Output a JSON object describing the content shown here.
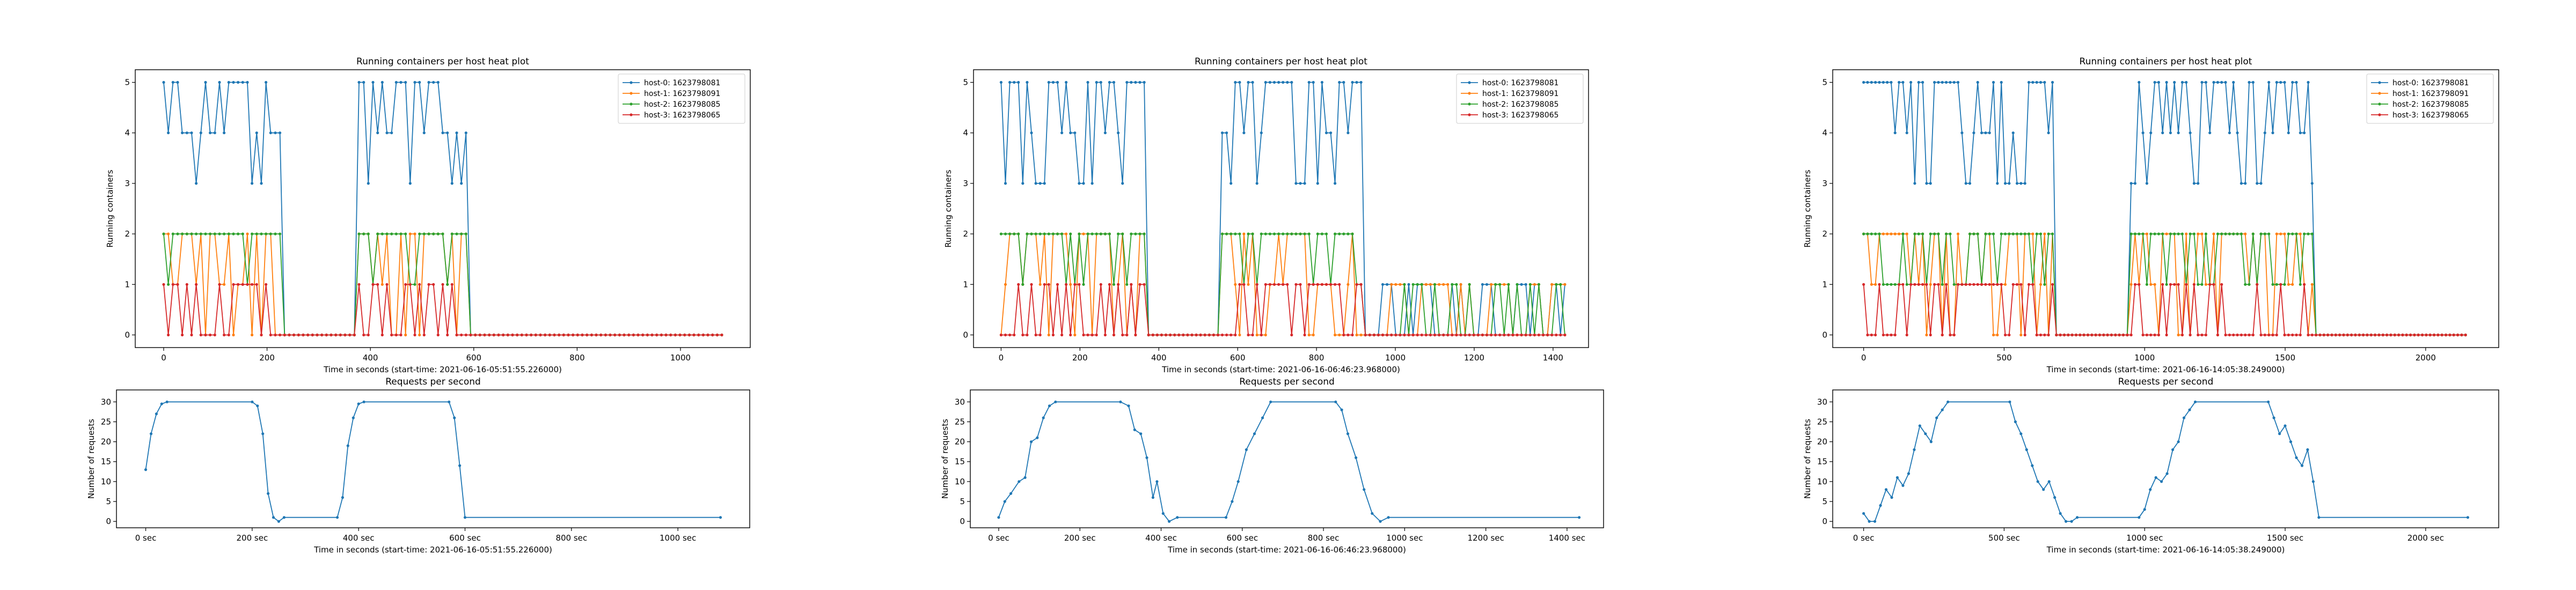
{
  "figure": {
    "colors": {
      "host-0": "#1f77b4",
      "host-1": "#ff7f0e",
      "host-2": "#2ca02c",
      "host-3": "#d62728",
      "requests": "#1f77b4"
    }
  },
  "chart_data": [
    {
      "id": "c1-hosts",
      "type": "line",
      "title": "Running containers per host heat plot",
      "xlabel": "Time in seconds (start-time: 2021-06-16-05:51:55.226000)",
      "ylabel": "Running containers",
      "xlim": [
        -55,
        1135
      ],
      "ylim": [
        -0.25,
        5.25
      ],
      "xticks": [
        0,
        200,
        400,
        600,
        800,
        1000
      ],
      "xtick_labels": [
        "0",
        "200",
        "400",
        "600",
        "800",
        "1000"
      ],
      "yticks": [
        0,
        1,
        2,
        3,
        4,
        5
      ],
      "ytick_labels": [
        "0",
        "1",
        "2",
        "3",
        "4",
        "5"
      ],
      "legend": "top-right",
      "gen": {
        "dt": 9,
        "tmax": 1080,
        "phases": [
          [
            0,
            230
          ],
          [
            370,
            585
          ]
        ],
        "seed": 11
      },
      "series": [
        {
          "name": "host-0: 1623798081",
          "key": "host-0"
        },
        {
          "name": "host-1: 1623798091",
          "key": "host-1"
        },
        {
          "name": "host-2: 1623798085",
          "key": "host-2"
        },
        {
          "name": "host-3: 1623798065",
          "key": "host-3"
        }
      ]
    },
    {
      "id": "c2-hosts",
      "type": "line",
      "title": "Running containers per host heat plot",
      "xlabel": "Time in seconds (start-time: 2021-06-16-06:46:23.968000)",
      "ylabel": "Running containers",
      "xlim": [
        -70,
        1490
      ],
      "ylim": [
        -0.25,
        5.25
      ],
      "xticks": [
        0,
        200,
        400,
        600,
        800,
        1000,
        1200,
        1400
      ],
      "xtick_labels": [
        "0",
        "200",
        "400",
        "600",
        "800",
        "1000",
        "1200",
        "1400"
      ],
      "yticks": [
        0,
        1,
        2,
        3,
        4,
        5
      ],
      "ytick_labels": [
        "0",
        "1",
        "2",
        "3",
        "4",
        "5"
      ],
      "legend": "top-right",
      "gen": {
        "dt": 11,
        "tmax": 1430,
        "phases": [
          [
            0,
            365
          ],
          [
            560,
            920
          ]
        ],
        "tail": [
          960,
          1430
        ],
        "seed": 23
      },
      "series": [
        {
          "name": "host-0: 1623798081",
          "key": "host-0"
        },
        {
          "name": "host-1: 1623798091",
          "key": "host-1"
        },
        {
          "name": "host-2: 1623798085",
          "key": "host-2"
        },
        {
          "name": "host-3: 1623798065",
          "key": "host-3"
        }
      ]
    },
    {
      "id": "c3-hosts",
      "type": "line",
      "title": "Running containers per host heat plot",
      "xlabel": "Time in seconds (start-time: 2021-06-16-14:05:38.249000)",
      "ylabel": "Running containers",
      "xlim": [
        -110,
        2260
      ],
      "ylim": [
        -0.25,
        5.25
      ],
      "xticks": [
        0,
        500,
        1000,
        1500,
        2000
      ],
      "xtick_labels": [
        "0",
        "500",
        "1000",
        "1500",
        "2000"
      ],
      "yticks": [
        0,
        1,
        2,
        3,
        4,
        5
      ],
      "ytick_labels": [
        "0",
        "1",
        "2",
        "3",
        "4",
        "5"
      ],
      "legend": "top-right",
      "gen": {
        "dt": 14,
        "tmax": 2150,
        "phases": [
          [
            0,
            680
          ],
          [
            950,
            1600
          ]
        ],
        "seed": 37
      },
      "series": [
        {
          "name": "host-0: 1623798081",
          "key": "host-0"
        },
        {
          "name": "host-1: 1623798091",
          "key": "host-1"
        },
        {
          "name": "host-2: 1623798085",
          "key": "host-2"
        },
        {
          "name": "host-3: 1623798065",
          "key": "host-3"
        }
      ]
    },
    {
      "id": "c1-req",
      "type": "line",
      "title": "Requests per second",
      "xlabel": "Time in seconds (start-time: 2021-06-16-05:51:55.226000)",
      "ylabel": "Number of requests",
      "xlim": [
        -55,
        1135
      ],
      "ylim": [
        -1.6,
        33.0
      ],
      "xticks": [
        0,
        200,
        400,
        600,
        800,
        1000
      ],
      "xtick_labels": [
        "0 sec",
        "200 sec",
        "400 sec",
        "600 sec",
        "800 sec",
        "1000 sec"
      ],
      "yticks": [
        0,
        5,
        10,
        15,
        20,
        25,
        30
      ],
      "ytick_labels": [
        "0",
        "5",
        "10",
        "15",
        "20",
        "25",
        "30"
      ],
      "legend": "none",
      "points": [
        [
          0,
          13
        ],
        [
          10,
          22
        ],
        [
          20,
          27
        ],
        [
          30,
          29.5
        ],
        [
          40,
          30
        ],
        [
          200,
          30
        ],
        [
          210,
          29
        ],
        [
          220,
          22
        ],
        [
          230,
          7
        ],
        [
          240,
          1
        ],
        [
          250,
          0
        ],
        [
          260,
          1
        ],
        [
          360,
          1
        ],
        [
          370,
          6
        ],
        [
          380,
          19
        ],
        [
          390,
          26
        ],
        [
          400,
          29.5
        ],
        [
          410,
          30
        ],
        [
          570,
          30
        ],
        [
          580,
          26
        ],
        [
          590,
          14
        ],
        [
          600,
          1
        ],
        [
          1080,
          1
        ]
      ]
    },
    {
      "id": "c2-req",
      "type": "line",
      "title": "Requests per second",
      "xlabel": "Time in seconds (start-time: 2021-06-16-06:46:23.968000)",
      "ylabel": "Number of requests",
      "xlim": [
        -70,
        1490
      ],
      "ylim": [
        -1.6,
        33.0
      ],
      "xticks": [
        0,
        200,
        400,
        600,
        800,
        1000,
        1200,
        1400
      ],
      "xtick_labels": [
        "0 sec",
        "200 sec",
        "400 sec",
        "600 sec",
        "800 sec",
        "1000 sec",
        "1200 sec",
        "1400 sec"
      ],
      "yticks": [
        0,
        5,
        10,
        15,
        20,
        25,
        30
      ],
      "ytick_labels": [
        "0",
        "5",
        "10",
        "15",
        "20",
        "25",
        "30"
      ],
      "legend": "none",
      "points": [
        [
          0,
          1
        ],
        [
          15,
          5
        ],
        [
          30,
          7
        ],
        [
          50,
          10
        ],
        [
          65,
          11
        ],
        [
          80,
          20
        ],
        [
          95,
          21
        ],
        [
          110,
          26
        ],
        [
          125,
          29
        ],
        [
          140,
          30
        ],
        [
          300,
          30
        ],
        [
          320,
          29
        ],
        [
          335,
          23
        ],
        [
          350,
          22
        ],
        [
          365,
          16
        ],
        [
          380,
          6
        ],
        [
          390,
          10
        ],
        [
          405,
          2
        ],
        [
          420,
          0
        ],
        [
          440,
          1
        ],
        [
          560,
          1
        ],
        [
          575,
          5
        ],
        [
          590,
          10
        ],
        [
          610,
          18
        ],
        [
          630,
          22
        ],
        [
          650,
          26
        ],
        [
          670,
          30
        ],
        [
          830,
          30
        ],
        [
          845,
          28
        ],
        [
          860,
          22
        ],
        [
          880,
          16
        ],
        [
          900,
          8
        ],
        [
          920,
          2
        ],
        [
          940,
          0
        ],
        [
          960,
          1
        ],
        [
          1430,
          1
        ]
      ]
    },
    {
      "id": "c3-req",
      "type": "line",
      "title": "Requests per second",
      "xlabel": "Time in seconds (start-time: 2021-06-16-14:05:38.249000)",
      "ylabel": "Number of requests",
      "xlim": [
        -110,
        2260
      ],
      "ylim": [
        -1.6,
        33.0
      ],
      "xticks": [
        0,
        500,
        1000,
        1500,
        2000
      ],
      "xtick_labels": [
        "0 sec",
        "500 sec",
        "1000 sec",
        "1500 sec",
        "2000 sec"
      ],
      "yticks": [
        0,
        5,
        10,
        15,
        20,
        25,
        30
      ],
      "ytick_labels": [
        "0",
        "5",
        "10",
        "15",
        "20",
        "25",
        "30"
      ],
      "legend": "none",
      "points": [
        [
          0,
          2
        ],
        [
          20,
          0
        ],
        [
          40,
          0
        ],
        [
          60,
          4
        ],
        [
          80,
          8
        ],
        [
          100,
          6
        ],
        [
          120,
          11
        ],
        [
          140,
          9
        ],
        [
          160,
          12
        ],
        [
          180,
          18
        ],
        [
          200,
          24
        ],
        [
          220,
          22
        ],
        [
          240,
          20
        ],
        [
          260,
          26
        ],
        [
          280,
          28
        ],
        [
          300,
          30
        ],
        [
          520,
          30
        ],
        [
          540,
          25
        ],
        [
          560,
          22
        ],
        [
          580,
          18
        ],
        [
          600,
          14
        ],
        [
          620,
          10
        ],
        [
          640,
          8
        ],
        [
          660,
          10
        ],
        [
          680,
          6
        ],
        [
          700,
          2
        ],
        [
          720,
          0
        ],
        [
          740,
          0
        ],
        [
          760,
          1
        ],
        [
          980,
          1
        ],
        [
          1000,
          3
        ],
        [
          1020,
          8
        ],
        [
          1040,
          11
        ],
        [
          1060,
          10
        ],
        [
          1080,
          12
        ],
        [
          1100,
          18
        ],
        [
          1120,
          20
        ],
        [
          1140,
          26
        ],
        [
          1160,
          28
        ],
        [
          1180,
          30
        ],
        [
          1440,
          30
        ],
        [
          1460,
          26
        ],
        [
          1480,
          22
        ],
        [
          1500,
          24
        ],
        [
          1520,
          20
        ],
        [
          1540,
          16
        ],
        [
          1560,
          14
        ],
        [
          1580,
          18
        ],
        [
          1600,
          10
        ],
        [
          1620,
          1
        ],
        [
          2150,
          1
        ]
      ]
    }
  ]
}
